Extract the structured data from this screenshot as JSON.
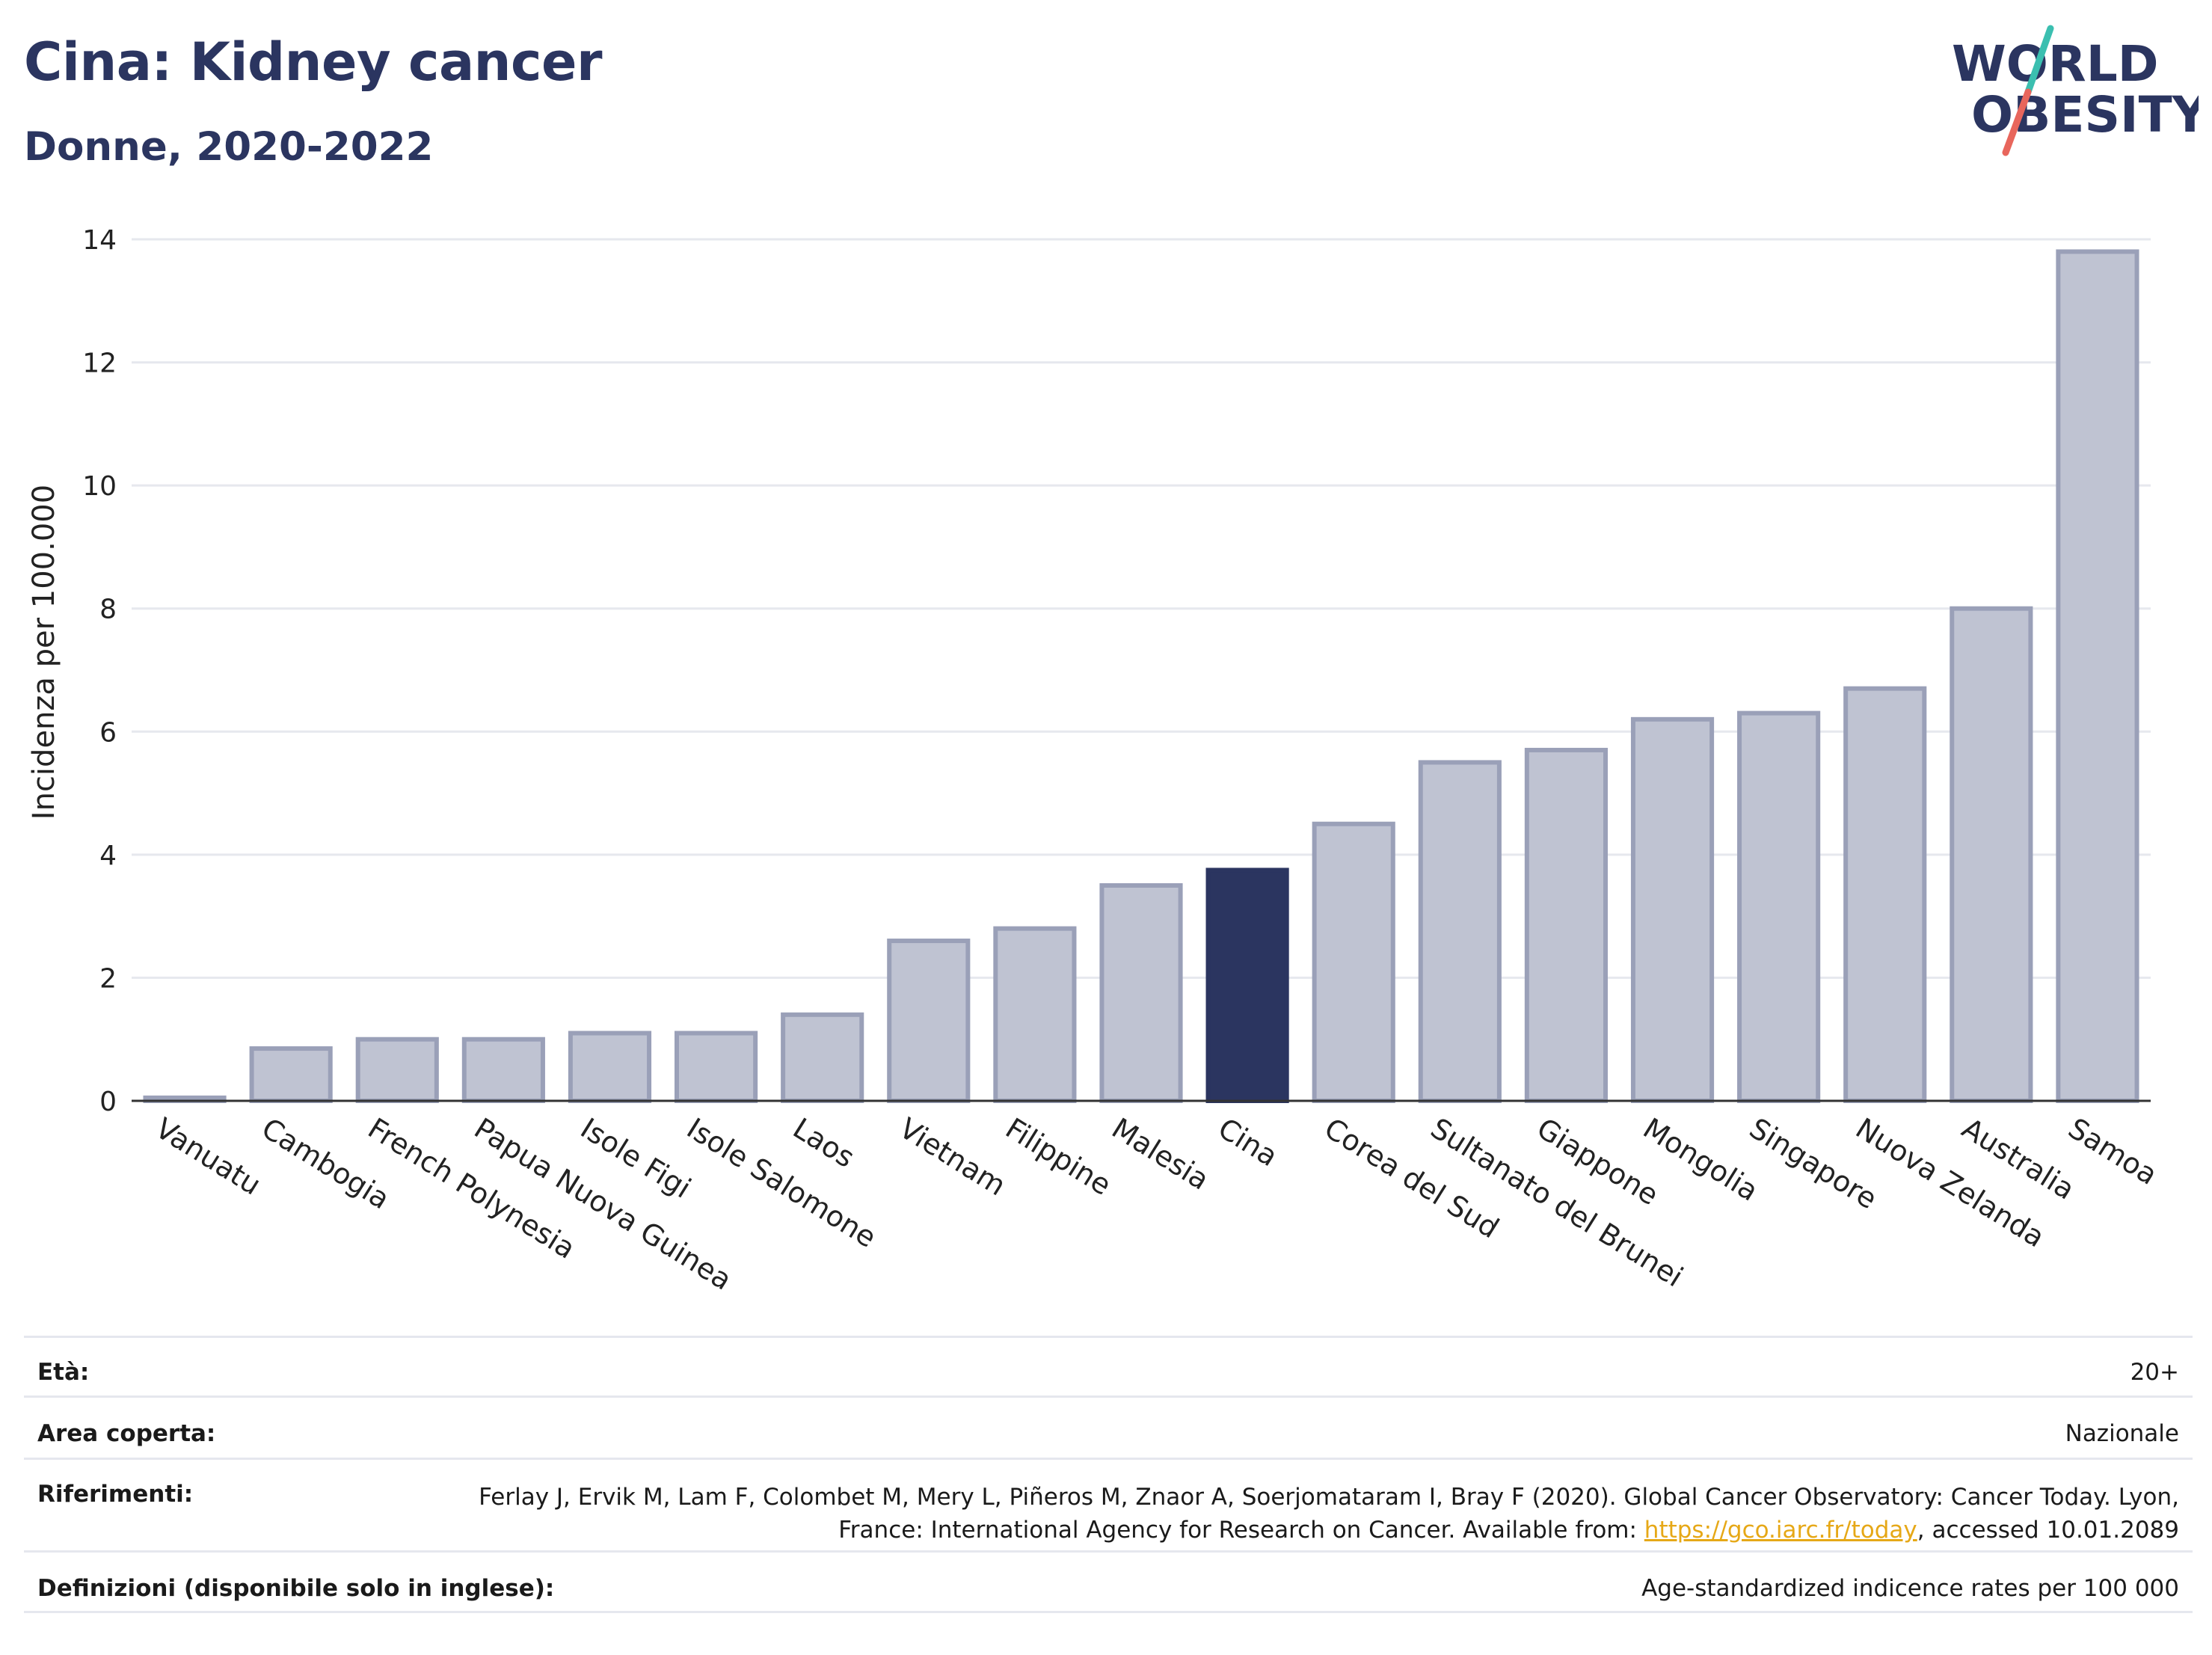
{
  "header": {
    "title": "Cina: Kidney cancer",
    "subtitle": "Donne, 2020-2022"
  },
  "logo": {
    "line1": "WORLD",
    "line2": "OBESITY",
    "colors": {
      "text": "#2b3560",
      "slash_top": "#3bbfb0",
      "slash_bottom": "#e8665c"
    }
  },
  "colors": {
    "bar_fill": "#bfc3d2",
    "bar_stroke": "#9aa0b8",
    "highlight": "#2b3560",
    "grid": "#e6e8ee",
    "axis": "#333333"
  },
  "chart_data": {
    "type": "bar",
    "ylabel": "Incidenza per 100.000",
    "ylim": [
      0,
      14
    ],
    "yticks": [
      0,
      2,
      4,
      6,
      8,
      10,
      12,
      14
    ],
    "grid": true,
    "highlight_category": "Cina",
    "categories": [
      "Vanuatu",
      "Cambogia",
      "French Polynesia",
      "Papua Nuova Guinea",
      "Isole Figi",
      "Isole Salomone",
      "Laos",
      "Vietnam",
      "Filippine",
      "Malesia",
      "Cina",
      "Corea del Sud",
      "Sultanato del Brunei",
      "Giappone",
      "Mongolia",
      "Singapore",
      "Nuova Zelanda",
      "Australia",
      "Samoa"
    ],
    "values": [
      0.05,
      0.85,
      1.0,
      1.0,
      1.1,
      1.1,
      1.4,
      2.6,
      2.8,
      3.5,
      3.75,
      4.5,
      5.5,
      5.7,
      6.2,
      6.3,
      6.7,
      8.0,
      13.8
    ]
  },
  "info": {
    "age": {
      "label": "Età:",
      "value": "20+"
    },
    "area": {
      "label": "Area coperta:",
      "value": "Nazionale"
    },
    "refs": {
      "label": "Riferimenti:",
      "text_before": "Ferlay J, Ervik M, Lam F, Colombet M, Mery L, Piñeros M, Znaor A, Soerjomataram I, Bray F (2020). Global Cancer Observatory: Cancer Today. Lyon, France: International Agency for Research on Cancer. Available from: ",
      "link": "https://gco.iarc.fr/today",
      "text_after": ", accessed 10.01.2089"
    },
    "defs": {
      "label": "Definizioni (disponibile solo in inglese):",
      "value": "Age-standardized indicence rates per 100 000"
    }
  }
}
